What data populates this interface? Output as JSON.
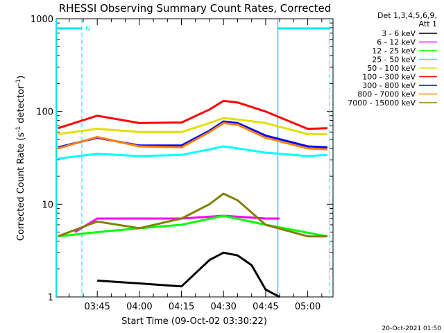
{
  "chart_data": {
    "type": "line",
    "title": "RHESSI Observing Summary Count Rates, Corrected",
    "xlabel": "Start Time (09-Oct-02 03:30:22)",
    "ylabel_main": "Corrected Count Rate (s",
    "ylabel_sup1": "-1",
    "ylabel_mid": " detector",
    "ylabel_sup2": "-1",
    "ylabel_end": ")",
    "yscale": "log",
    "ylim": [
      1,
      1000
    ],
    "xlim": [
      "03:30:22",
      "05:09:00"
    ],
    "x_ticks": [
      "03:45",
      "04:00",
      "04:15",
      "04:30",
      "04:45",
      "05:00"
    ],
    "y_tick_labels": [
      "1",
      "10",
      "100",
      "1000"
    ],
    "legend_header": [
      "Det 1,3,4,5,6,9,",
      "Att 1"
    ],
    "timestamp": "20-Oct-2021 01:50",
    "night_marker": "N",
    "markers": {
      "solid_times": [
        "03:30:30",
        "04:49:20"
      ],
      "dashed_times": [
        "03:39:30",
        "05:07:50"
      ]
    },
    "series": [
      {
        "name": "3 - 6 keV",
        "color": "#000000",
        "times": [
          "03:45",
          "04:00",
          "04:15",
          "04:25",
          "04:30",
          "04:35",
          "04:40",
          "04:45",
          "04:50"
        ],
        "values": [
          1.5,
          1.4,
          1.3,
          2.5,
          3.0,
          2.8,
          2.2,
          1.2,
          1.0
        ]
      },
      {
        "name": "6 - 12 keV",
        "color": "#ff00ff",
        "times": [
          "03:37",
          "03:45",
          "04:00",
          "04:15",
          "04:30",
          "04:45",
          "04:50"
        ],
        "values": [
          5,
          7,
          7,
          7,
          7.5,
          7,
          7
        ]
      },
      {
        "name": "12 - 25 keV",
        "color": "#00ff00",
        "times": [
          "03:31",
          "03:45",
          "04:00",
          "04:15",
          "04:30",
          "04:45",
          "05:07"
        ],
        "values": [
          4.5,
          5,
          5.5,
          6,
          7.5,
          6,
          4.5
        ]
      },
      {
        "name": "25 - 50 keV",
        "color": "#00ffff",
        "times": [
          "03:31",
          "03:45",
          "04:00",
          "04:15",
          "04:25",
          "04:30",
          "04:35",
          "04:45",
          "05:00",
          "05:07"
        ],
        "values": [
          31,
          35,
          33,
          34,
          39,
          42,
          40,
          36,
          33,
          34
        ]
      },
      {
        "name": "50 - 100 keV",
        "color": "#e0e000",
        "times": [
          "03:31",
          "03:45",
          "04:00",
          "04:15",
          "04:25",
          "04:30",
          "04:35",
          "04:45",
          "05:00",
          "05:07"
        ],
        "values": [
          57,
          65,
          60,
          60,
          75,
          85,
          82,
          75,
          57,
          57
        ]
      },
      {
        "name": "100 - 300 keV",
        "color": "#ff0000",
        "times": [
          "03:31",
          "03:45",
          "04:00",
          "04:15",
          "04:25",
          "04:30",
          "04:35",
          "04:45",
          "05:00",
          "05:07"
        ],
        "values": [
          66,
          90,
          75,
          76,
          105,
          130,
          125,
          100,
          65,
          66
        ]
      },
      {
        "name": "300 - 800 keV",
        "color": "#0000ff",
        "times": [
          "03:31",
          "03:45",
          "04:00",
          "04:15",
          "04:25",
          "04:30",
          "04:35",
          "04:45",
          "05:00",
          "05:07"
        ],
        "values": [
          41,
          52,
          43,
          43,
          62,
          78,
          75,
          55,
          42,
          41
        ]
      },
      {
        "name": "800 - 7000 keV",
        "color": "#ff8000",
        "times": [
          "03:31",
          "03:45",
          "04:00",
          "04:15",
          "04:25",
          "04:30",
          "04:35",
          "04:45",
          "05:00",
          "05:07"
        ],
        "values": [
          40,
          53,
          42,
          41,
          60,
          75,
          72,
          52,
          40,
          39
        ]
      },
      {
        "name": "7000 - 15000 keV",
        "color": "#808000",
        "times": [
          "03:31",
          "03:45",
          "04:00",
          "04:15",
          "04:25",
          "04:30",
          "04:35",
          "04:45",
          "05:00",
          "05:07"
        ],
        "values": [
          4.5,
          6.5,
          5.5,
          7,
          10,
          13,
          11,
          6,
          4.5,
          4.5
        ]
      }
    ]
  }
}
